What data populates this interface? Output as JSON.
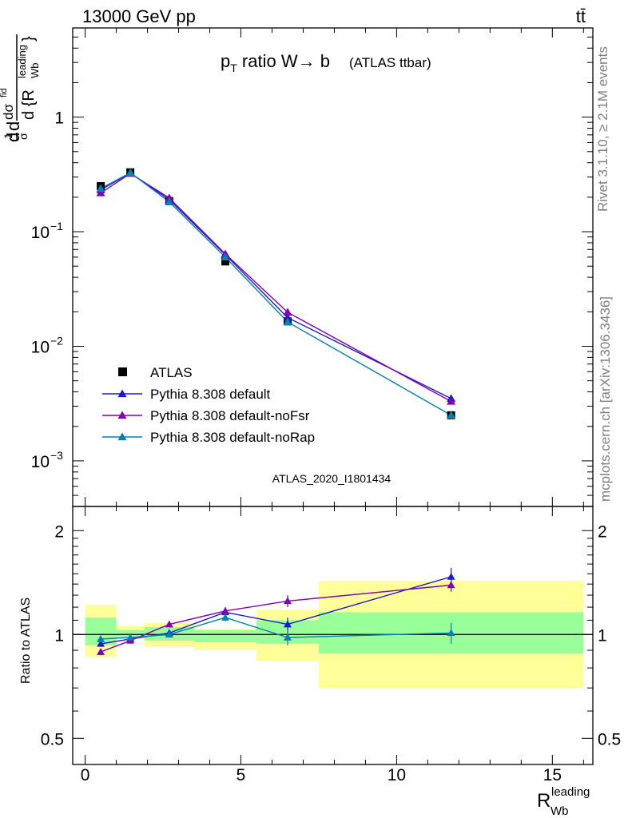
{
  "header": {
    "left": "13000 GeV pp",
    "right": "tt̄"
  },
  "side_labels": {
    "rivet": "Rivet 3.1.10, ≥ 2.1M events",
    "mcplots": "mcplots.cern.ch [arXiv:1306.3436]"
  },
  "main_panel": {
    "title_main": "p",
    "title_sub": "T",
    "title_rest": " ratio W→ b",
    "title_small": "(ATLAS ttbar)",
    "ylabel_a": "1",
    "ylabel_b": "σ",
    "ylabel_c": "dσ",
    "ylabel_d": "fid",
    "ylabel_e": "d {R",
    "ylabel_f": "leading",
    "ylabel_g": "Wb",
    "ylabel_h": "}",
    "ylabel_i": "d",
    "watermark": "ATLAS_2020_I1801434",
    "yticks": [
      {
        "label": "1",
        "value": 1
      },
      {
        "label": "10",
        "exp": "−1",
        "value": 0.1
      },
      {
        "label": "10",
        "exp": "−2",
        "value": 0.01
      },
      {
        "label": "10",
        "exp": "−3",
        "value": 0.001
      }
    ]
  },
  "ratio_panel": {
    "ylabel": "Ratio to ATLAS",
    "yticks": [
      "0.5",
      "1",
      "2"
    ]
  },
  "xaxis": {
    "label_main": "R",
    "label_sub": "Wb",
    "label_sup": "leading",
    "ticks": [
      "0",
      "5",
      "10",
      "15"
    ]
  },
  "legend": [
    {
      "name": "ATLAS",
      "marker": "square",
      "color": "#000000"
    },
    {
      "name": "Pythia 8.308 default",
      "marker": "triangle",
      "color": "#1a1acc"
    },
    {
      "name": "Pythia 8.308 default-noFsr",
      "marker": "triangle",
      "color": "#8000b3"
    },
    {
      "name": "Pythia 8.308 default-noRap",
      "marker": "triangle",
      "color": "#0080b3"
    }
  ],
  "chart_data": {
    "type": "line",
    "xlim": [
      -0.4,
      16.3
    ],
    "ylim": [
      0.0004,
      6
    ],
    "yscale": "log",
    "ratio_ylim": [
      0.42,
      2.35
    ],
    "ratio_yscale": "log",
    "bins": [
      {
        "lo": 0.0,
        "hi": 1.0,
        "x": 0.5
      },
      {
        "lo": 1.0,
        "hi": 1.9,
        "x": 1.45
      },
      {
        "lo": 1.9,
        "hi": 3.5,
        "x": 2.7
      },
      {
        "lo": 3.5,
        "hi": 5.5,
        "x": 4.5
      },
      {
        "lo": 5.5,
        "hi": 7.5,
        "x": 6.5
      },
      {
        "lo": 7.5,
        "hi": 16.0,
        "x": 11.75
      }
    ],
    "data": {
      "name": "ATLAS",
      "values": [
        0.25,
        0.33,
        0.185,
        0.055,
        0.0165,
        0.0025
      ],
      "band_inner": [
        [
          0.93,
          1.12
        ],
        [
          0.98,
          1.03
        ],
        [
          0.96,
          1.05
        ],
        [
          0.95,
          1.03
        ],
        [
          0.94,
          1.1
        ],
        [
          0.88,
          1.16
        ]
      ],
      "band_outer": [
        [
          0.86,
          1.22
        ],
        [
          0.97,
          1.06
        ],
        [
          0.92,
          1.08
        ],
        [
          0.9,
          1.04
        ],
        [
          0.84,
          1.18
        ],
        [
          0.7,
          1.43
        ]
      ]
    },
    "series": [
      {
        "name": "Pythia 8.308 default",
        "color": "#1a1acc",
        "values": [
          0.232,
          0.325,
          0.19,
          0.063,
          0.0178,
          0.0035
        ],
        "ratio": [
          0.94,
          0.97,
          1.01,
          1.16,
          1.07,
          1.47
        ],
        "ratio_err": [
          0.02,
          0.02,
          0.02,
          0.03,
          0.05,
          0.09
        ]
      },
      {
        "name": "Pythia 8.308 default-noFsr",
        "color": "#8000b3",
        "values": [
          0.218,
          0.322,
          0.197,
          0.064,
          0.0198,
          0.0033
        ],
        "ratio": [
          0.89,
          0.96,
          1.07,
          1.17,
          1.25,
          1.39
        ],
        "ratio_err": [
          0.02,
          0.02,
          0.02,
          0.03,
          0.05,
          0.06
        ]
      },
      {
        "name": "Pythia 8.308 default-noRap",
        "color": "#0080b3",
        "values": [
          0.238,
          0.327,
          0.182,
          0.06,
          0.0163,
          0.0025
        ],
        "ratio": [
          0.97,
          0.98,
          1.0,
          1.12,
          0.98,
          1.01
        ],
        "ratio_err": [
          0.02,
          0.02,
          0.02,
          0.03,
          0.05,
          0.07
        ]
      }
    ]
  }
}
